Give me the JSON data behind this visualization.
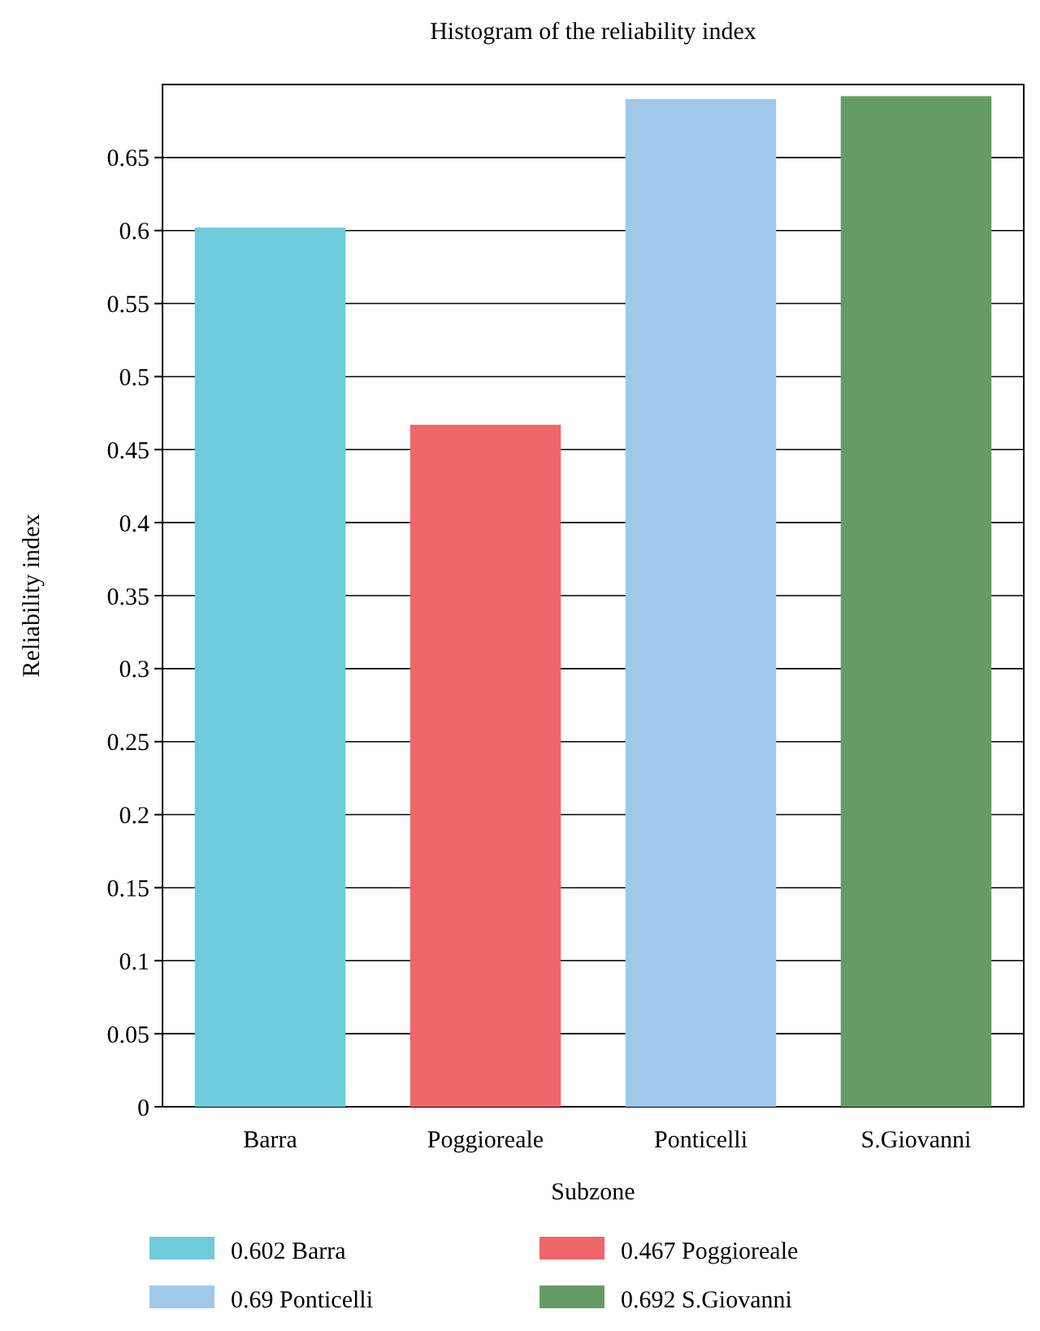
{
  "chart_data": {
    "type": "bar",
    "title": "Histogram of the reliability index",
    "xlabel": "Subzone",
    "ylabel": "Reliability index",
    "categories": [
      "Barra",
      "Poggioreale",
      "Ponticelli",
      "S.Giovanni"
    ],
    "series": [
      {
        "name": "0.602 Barra",
        "color": "#6dcbdb",
        "values": [
          0.602,
          null,
          null,
          null
        ]
      },
      {
        "name": "0.467 Poggioreale",
        "color": "#ef6669",
        "values": [
          null,
          0.467,
          null,
          null
        ]
      },
      {
        "name": "0.69 Ponticelli",
        "color": "#9fc8ea",
        "values": [
          null,
          null,
          0.69,
          null
        ]
      },
      {
        "name": "0.692 S.Giovanni",
        "color": "#659c66",
        "values": [
          null,
          null,
          null,
          0.692
        ]
      }
    ],
    "ylim": [
      0,
      0.7
    ],
    "yticks": [
      0,
      0.05,
      0.1,
      0.15,
      0.2,
      0.25,
      0.3,
      0.35,
      0.4,
      0.45,
      0.5,
      0.55,
      0.6,
      0.65
    ],
    "grid": "y",
    "legend": "bottom"
  }
}
